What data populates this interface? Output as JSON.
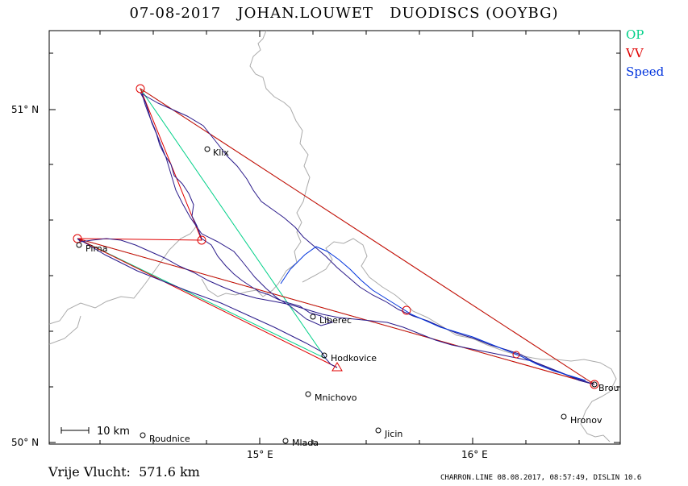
{
  "title": "07-08-2017   JOHAN.LOUWET   DUODISCS (OOYBG)",
  "legend": {
    "op": "OP",
    "vv": "VV",
    "speed": "Speed"
  },
  "colors": {
    "op": "#00d088",
    "vv": "#e00000",
    "speed": "#0033dd",
    "track": "#2a1a8a",
    "border": "#aaaaaa"
  },
  "axes": {
    "lat_labels": [
      "51° N",
      "50° N"
    ],
    "lon_labels": [
      "15° E",
      "16° E"
    ]
  },
  "scale_bar": "10 km",
  "towns": [
    "Pirna",
    "Klix",
    "Liberec",
    "Hodkovice",
    "Mnichovo",
    "Jicin",
    "Roudnice",
    "Mlada",
    "Hronov",
    "Brou"
  ],
  "distance_text": "Vrije Vlucht:  571.6 km",
  "credit": "CHARRON.LINE 08.08.2017, 08:57:49, DISLIN 10.6"
}
